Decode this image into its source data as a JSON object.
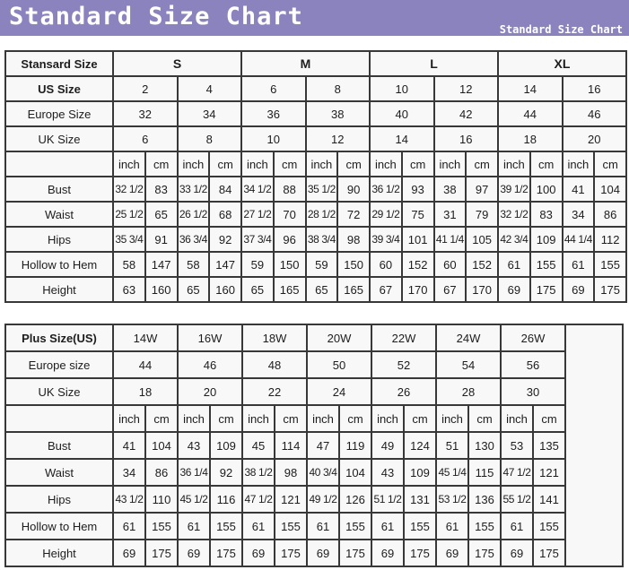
{
  "banner": {
    "title": "Standard Size Chart",
    "subtitle": "Standard Size Chart",
    "bg_color": "#8a83be",
    "text_color": "#ffffff"
  },
  "chart_data": [
    {
      "type": "table",
      "name": "standard-size-table",
      "label_col_width": 120,
      "data_col_width": 35.75,
      "num_data_cols": 16,
      "empty_col": false,
      "rows": [
        {
          "label": "Stansard Size",
          "label_bold": true,
          "cells_bold": true,
          "colspan": 4,
          "cells": [
            "S",
            "M",
            "L",
            "XL"
          ]
        },
        {
          "label": "US Size",
          "label_bold": true,
          "colspan": 2,
          "cells": [
            "2",
            "4",
            "6",
            "8",
            "10",
            "12",
            "14",
            "16"
          ]
        },
        {
          "label": "Europe Size",
          "colspan": 2,
          "cells": [
            "32",
            "34",
            "36",
            "38",
            "40",
            "42",
            "44",
            "46"
          ]
        },
        {
          "label": "UK Size",
          "colspan": 2,
          "cells": [
            "6",
            "8",
            "10",
            "12",
            "14",
            "16",
            "18",
            "20"
          ]
        },
        {
          "label": "",
          "colspan": 1,
          "cells": [
            "inch",
            "cm",
            "inch",
            "cm",
            "inch",
            "cm",
            "inch",
            "cm",
            "inch",
            "cm",
            "inch",
            "cm",
            "inch",
            "cm",
            "inch",
            "cm"
          ]
        },
        {
          "label": "Bust",
          "colspan": 1,
          "cells": [
            "32 1/2",
            "83",
            "33 1/2",
            "84",
            "34 1/2",
            "88",
            "35 1/2",
            "90",
            "36 1/2",
            "93",
            "38",
            "97",
            "39 1/2",
            "100",
            "41",
            "104"
          ]
        },
        {
          "label": "Waist",
          "colspan": 1,
          "cells": [
            "25 1/2",
            "65",
            "26 1/2",
            "68",
            "27 1/2",
            "70",
            "28 1/2",
            "72",
            "29 1/2",
            "75",
            "31",
            "79",
            "32 1/2",
            "83",
            "34",
            "86"
          ]
        },
        {
          "label": "Hips",
          "colspan": 1,
          "cells": [
            "35 3/4",
            "91",
            "36 3/4",
            "92",
            "37 3/4",
            "96",
            "38 3/4",
            "98",
            "39 3/4",
            "101",
            "41 1/4",
            "105",
            "42 3/4",
            "109",
            "44 1/4",
            "112"
          ]
        },
        {
          "label": "Hollow to Hem",
          "colspan": 1,
          "cells": [
            "58",
            "147",
            "58",
            "147",
            "59",
            "150",
            "59",
            "150",
            "60",
            "152",
            "60",
            "152",
            "61",
            "155",
            "61",
            "155"
          ]
        },
        {
          "label": "Height",
          "colspan": 1,
          "cells": [
            "63",
            "160",
            "65",
            "160",
            "65",
            "165",
            "65",
            "165",
            "67",
            "170",
            "67",
            "170",
            "69",
            "175",
            "69",
            "175"
          ]
        }
      ]
    },
    {
      "type": "table",
      "name": "plus-size-table",
      "label_col_width": 120,
      "data_col_width": 36,
      "num_data_cols": 14,
      "empty_col": true,
      "empty_col_width": 64,
      "rows": [
        {
          "label": "Plus Size(US)",
          "label_bold": true,
          "colspan": 2,
          "cells": [
            "14W",
            "16W",
            "18W",
            "20W",
            "22W",
            "24W",
            "26W"
          ]
        },
        {
          "label": "Europe size",
          "colspan": 2,
          "cells": [
            "44",
            "46",
            "48",
            "50",
            "52",
            "54",
            "56"
          ]
        },
        {
          "label": "UK Size",
          "colspan": 2,
          "cells": [
            "18",
            "20",
            "22",
            "24",
            "26",
            "28",
            "30"
          ]
        },
        {
          "label": "",
          "colspan": 1,
          "cells": [
            "inch",
            "cm",
            "inch",
            "cm",
            "inch",
            "cm",
            "inch",
            "cm",
            "inch",
            "cm",
            "inch",
            "cm",
            "inch",
            "cm"
          ]
        },
        {
          "label": "Bust",
          "colspan": 1,
          "cells": [
            "41",
            "104",
            "43",
            "109",
            "45",
            "114",
            "47",
            "119",
            "49",
            "124",
            "51",
            "130",
            "53",
            "135"
          ]
        },
        {
          "label": "Waist",
          "colspan": 1,
          "cells": [
            "34",
            "86",
            "36 1/4",
            "92",
            "38 1/2",
            "98",
            "40 3/4",
            "104",
            "43",
            "109",
            "45 1/4",
            "115",
            "47 1/2",
            "121"
          ]
        },
        {
          "label": "Hips",
          "colspan": 1,
          "cells": [
            "43 1/2",
            "110",
            "45 1/2",
            "116",
            "47 1/2",
            "121",
            "49 1/2",
            "126",
            "51 1/2",
            "131",
            "53 1/2",
            "136",
            "55 1/2",
            "141"
          ]
        },
        {
          "label": "Hollow to Hem",
          "colspan": 1,
          "cells": [
            "61",
            "155",
            "61",
            "155",
            "61",
            "155",
            "61",
            "155",
            "61",
            "155",
            "61",
            "155",
            "61",
            "155"
          ]
        },
        {
          "label": "Height",
          "colspan": 1,
          "cells": [
            "69",
            "175",
            "69",
            "175",
            "69",
            "175",
            "69",
            "175",
            "69",
            "175",
            "69",
            "175",
            "69",
            "175"
          ]
        }
      ]
    }
  ]
}
